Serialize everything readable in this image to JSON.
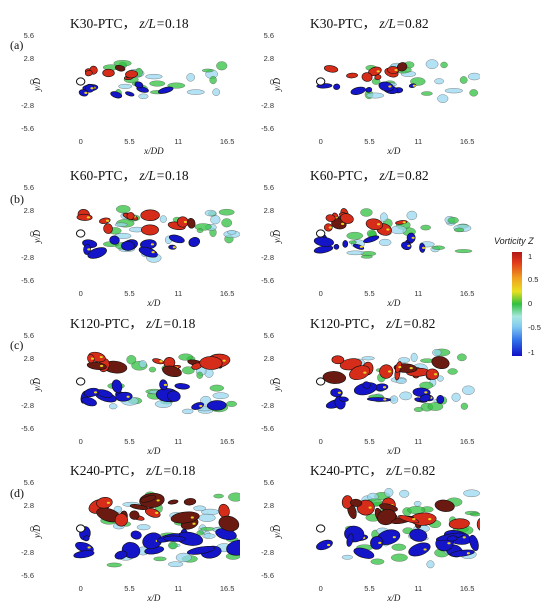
{
  "row_labels": [
    "(a)",
    "(b)",
    "(c)",
    "(d)"
  ],
  "panels": [
    {
      "case": "K30-PTC",
      "zL": "0.18",
      "level": 1
    },
    {
      "case": "K30-PTC",
      "zL": "0.82",
      "level": 1
    },
    {
      "case": "K60-PTC",
      "zL": "0.18",
      "level": 2
    },
    {
      "case": "K60-PTC",
      "zL": "0.82",
      "level": 2
    },
    {
      "case": "K120-PTC",
      "zL": "0.18",
      "level": 3
    },
    {
      "case": "K120-PTC",
      "zL": "0.82",
      "level": 3
    },
    {
      "case": "K240-PTC",
      "zL": "0.18",
      "level": 4
    },
    {
      "case": "K240-PTC",
      "zL": "0.82",
      "level": 4
    }
  ],
  "title_separator": "，",
  "z_label": "z/L=",
  "y_axis_label": "y/D",
  "x_axis_labels": [
    "x/DD",
    "x/D",
    "x/D",
    "x/D",
    "x/D",
    "x/D",
    "x/D",
    "x/D"
  ],
  "y_ticks": [
    "5.6",
    "2.8",
    "0",
    "-2.8",
    "-5.6"
  ],
  "x_ticks": [
    "0",
    "5.5",
    "11",
    "16.5"
  ],
  "colorbar": {
    "title": "Vorticity Z",
    "ticks": [
      "1",
      "0.5",
      "0",
      "-0.5",
      "-1"
    ],
    "colors": {
      "pos": "#d62c1a",
      "neg": "#1414c8",
      "mid": "#30c040",
      "light": "#9ad8f0",
      "yellow": "#e8d020",
      "dark": "#6a1a10"
    }
  }
}
